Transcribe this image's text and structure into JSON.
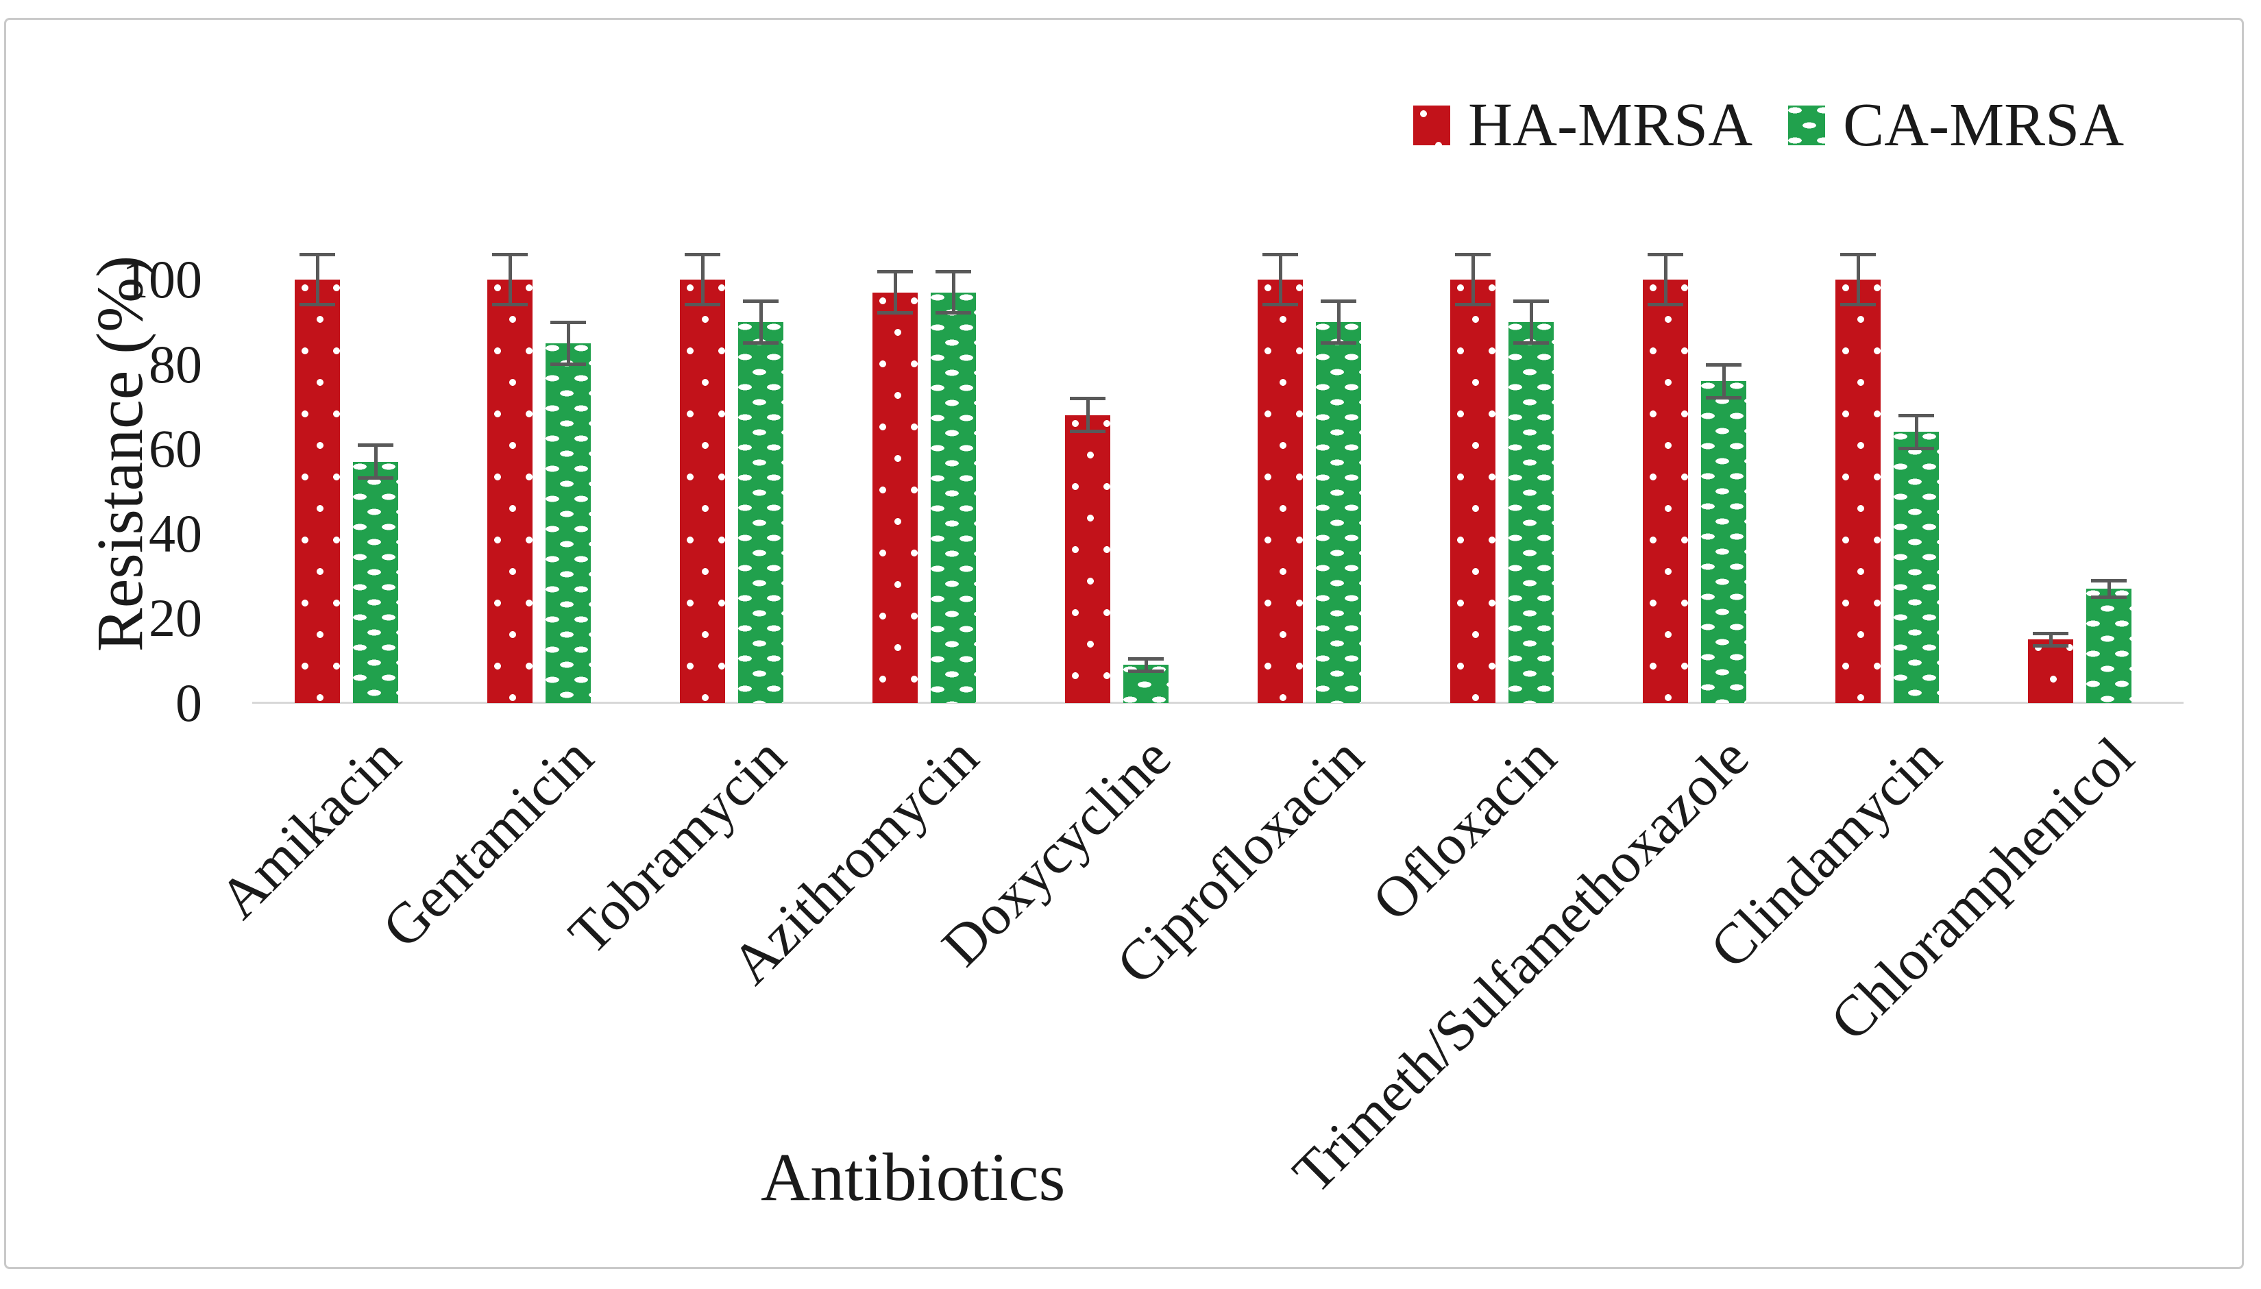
{
  "chart_data": {
    "type": "bar",
    "title": "",
    "xlabel": "Antibiotics",
    "ylabel": "Resistance (%)",
    "ylim": [
      0,
      100
    ],
    "yticks": [
      0,
      20,
      40,
      60,
      80,
      100
    ],
    "grid": false,
    "legend_position": "top-right",
    "error_bars": true,
    "categories": [
      "Amikacin",
      "Gentamicin",
      "Tobramycin",
      "Azithromycin",
      "Doxycycline",
      "Ciprofloxacin",
      "Ofloxacin",
      "Trimeth/Sulfamethoxazole",
      "Clindamycin",
      "Chloramphenicol"
    ],
    "series": [
      {
        "name": "HA-MRSA",
        "color": "#c2121a",
        "pattern": "white-dots-on-red",
        "values": [
          100,
          100,
          100,
          97,
          68,
          100,
          100,
          100,
          100,
          15
        ],
        "errors": [
          6,
          6,
          6,
          5,
          4,
          6,
          6,
          6,
          6,
          1.5
        ]
      },
      {
        "name": "CA-MRSA",
        "color": "#21a14d",
        "pattern": "white-dashes-on-green",
        "values": [
          57,
          85,
          90,
          97,
          9,
          90,
          90,
          76,
          64,
          27
        ],
        "errors": [
          4,
          5,
          5,
          5,
          1.5,
          5,
          5,
          4,
          4,
          2
        ]
      }
    ],
    "colors": {
      "error_bar": "#595959",
      "axis_line": "#d8d8d8",
      "frame_border": "#c9c9c9",
      "text": "#1a1a1a"
    }
  }
}
